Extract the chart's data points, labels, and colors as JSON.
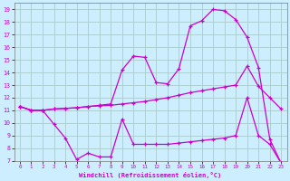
{
  "xlabel": "Windchill (Refroidissement éolien,°C)",
  "bg_color": "#cceeff",
  "grid_color": "#aacccc",
  "line_color": "#cc00cc",
  "xlim": [
    -0.5,
    23.5
  ],
  "ylim": [
    7,
    19.5
  ],
  "xticks": [
    0,
    1,
    2,
    3,
    4,
    5,
    6,
    7,
    8,
    9,
    10,
    11,
    12,
    13,
    14,
    15,
    16,
    17,
    18,
    19,
    20,
    21,
    22,
    23
  ],
  "yticks": [
    7,
    8,
    9,
    10,
    11,
    12,
    13,
    14,
    15,
    16,
    17,
    18,
    19
  ],
  "line_upper_x": [
    0,
    1,
    2,
    3,
    4,
    5,
    6,
    7,
    8,
    9,
    10,
    11,
    12,
    13,
    14,
    15,
    16,
    17,
    18,
    19,
    20,
    21,
    22,
    23
  ],
  "line_upper_y": [
    11.3,
    11.0,
    11.0,
    11.1,
    11.15,
    11.2,
    11.3,
    11.4,
    11.5,
    14.2,
    15.3,
    15.2,
    13.2,
    13.1,
    14.3,
    17.7,
    18.1,
    19.0,
    18.9,
    18.2,
    16.8,
    14.4,
    8.7,
    6.8
  ],
  "line_mid_x": [
    0,
    1,
    2,
    3,
    4,
    5,
    6,
    7,
    8,
    9,
    10,
    11,
    12,
    13,
    14,
    15,
    16,
    17,
    18,
    19,
    20,
    21,
    22,
    23
  ],
  "line_mid_y": [
    11.3,
    11.0,
    11.0,
    11.1,
    11.15,
    11.2,
    11.3,
    11.35,
    11.4,
    11.5,
    11.6,
    11.7,
    11.85,
    12.0,
    12.2,
    12.4,
    12.55,
    12.7,
    12.85,
    13.0,
    14.5,
    12.9,
    12.0,
    11.1
  ],
  "line_low_x": [
    0,
    1,
    2,
    3,
    4,
    5,
    6,
    7,
    8,
    9,
    10,
    11,
    12,
    13,
    14,
    15,
    16,
    17,
    18,
    19,
    20,
    21,
    22,
    23
  ],
  "line_low_y": [
    11.3,
    11.0,
    11.0,
    9.9,
    8.8,
    7.1,
    7.6,
    7.3,
    7.3,
    10.3,
    8.3,
    8.3,
    8.3,
    8.3,
    8.4,
    8.5,
    8.6,
    8.7,
    8.8,
    9.0,
    12.0,
    9.0,
    8.3,
    6.8
  ]
}
